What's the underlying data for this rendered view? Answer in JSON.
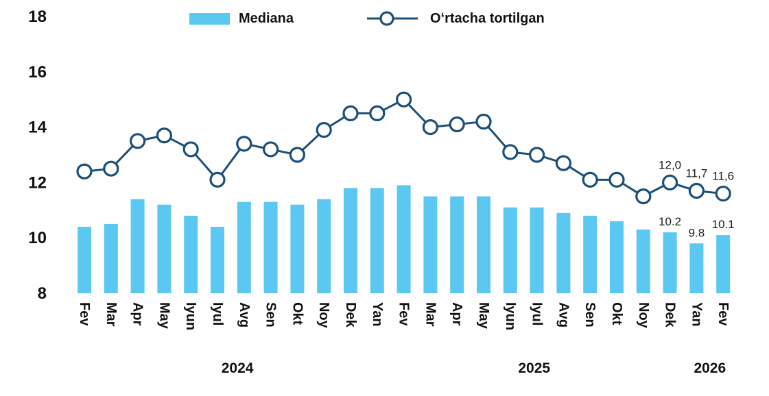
{
  "legend": {
    "items": [
      {
        "label": "Mediana",
        "type": "bar"
      },
      {
        "label": "Oʻrtacha tortilgan",
        "type": "line"
      }
    ]
  },
  "colors": {
    "bar": "#5BC8F2",
    "line": "#1B4E79",
    "marker_fill": "#FFFFFF",
    "text": "#111111"
  },
  "chart_data": {
    "type": "bar",
    "combo": "bar+line",
    "x_unit": "month",
    "categories": [
      "Fev",
      "Mar",
      "Apr",
      "May",
      "Iyun",
      "Iyul",
      "Avg",
      "Sen",
      "Okt",
      "Noy",
      "Dek",
      "Yan",
      "Fev",
      "Mar",
      "Apr",
      "May",
      "Iyun",
      "Iyul",
      "Avg",
      "Sen",
      "Okt",
      "Noy",
      "Dek",
      "Yan",
      "Fev"
    ],
    "year_labels": [
      {
        "label": "2024",
        "center_index": 5.75
      },
      {
        "label": "2025",
        "center_index": 16.9
      },
      {
        "label": "2026",
        "center_index": 23.5
      }
    ],
    "series": [
      {
        "name": "Mediana",
        "type": "bar",
        "values": [
          10.4,
          10.5,
          11.4,
          11.2,
          10.8,
          10.4,
          11.3,
          11.3,
          11.2,
          11.4,
          11.8,
          11.8,
          11.9,
          11.5,
          11.5,
          11.5,
          11.1,
          11.1,
          10.9,
          10.8,
          10.6,
          10.3,
          10.2,
          9.8,
          10.1
        ]
      },
      {
        "name": "Oʻrtacha tortilgan",
        "type": "line",
        "values": [
          12.4,
          12.5,
          13.5,
          13.7,
          13.2,
          12.1,
          13.4,
          13.2,
          13.0,
          13.9,
          14.5,
          14.5,
          15.0,
          14.0,
          14.1,
          14.2,
          13.1,
          13.0,
          12.7,
          12.1,
          12.1,
          11.5,
          12.0,
          11.7,
          11.6
        ]
      }
    ],
    "point_labels": {
      "line": {
        "22": "12,0",
        "23": "11,7",
        "24": "11,6"
      },
      "bar": {
        "22": "10.2",
        "23": "9.8",
        "24": "10.1"
      }
    },
    "ylim": [
      8,
      18
    ],
    "yticks": [
      8,
      10,
      12,
      14,
      16,
      18
    ],
    "grid": false,
    "legend_position": "top"
  }
}
